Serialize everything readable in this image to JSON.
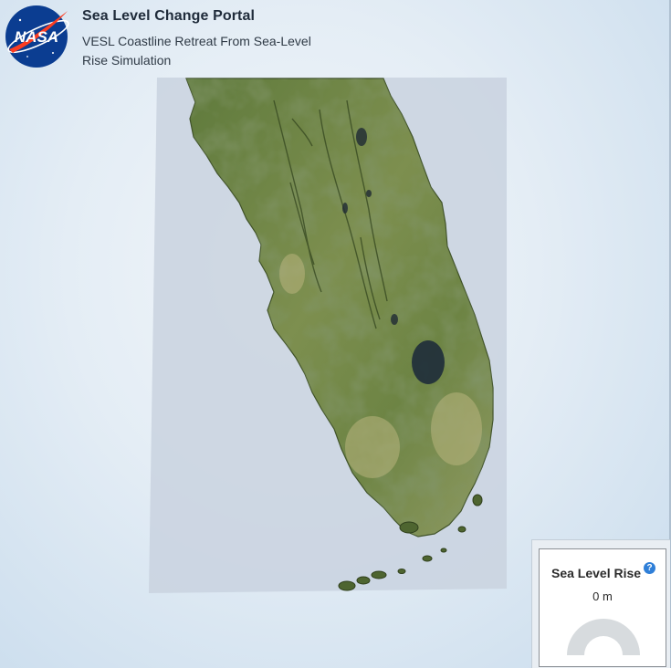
{
  "header": {
    "logo_text": "NASA",
    "title": "Sea Level Change Portal",
    "subtitle": "VESL Coastline Retreat From Sea-Level Rise Simulation"
  },
  "map": {
    "region": "Florida peninsula terrain"
  },
  "widget": {
    "title": "Sea Level Rise",
    "help_symbol": "?",
    "value": "0 m",
    "gauge_level": 0
  },
  "colors": {
    "nasa_blue": "#0b3d91",
    "nasa_red": "#fc3d21",
    "help_blue": "#2f7fd8",
    "land_green": "#5d7a3a",
    "water_tint": "#c5cfdc"
  }
}
